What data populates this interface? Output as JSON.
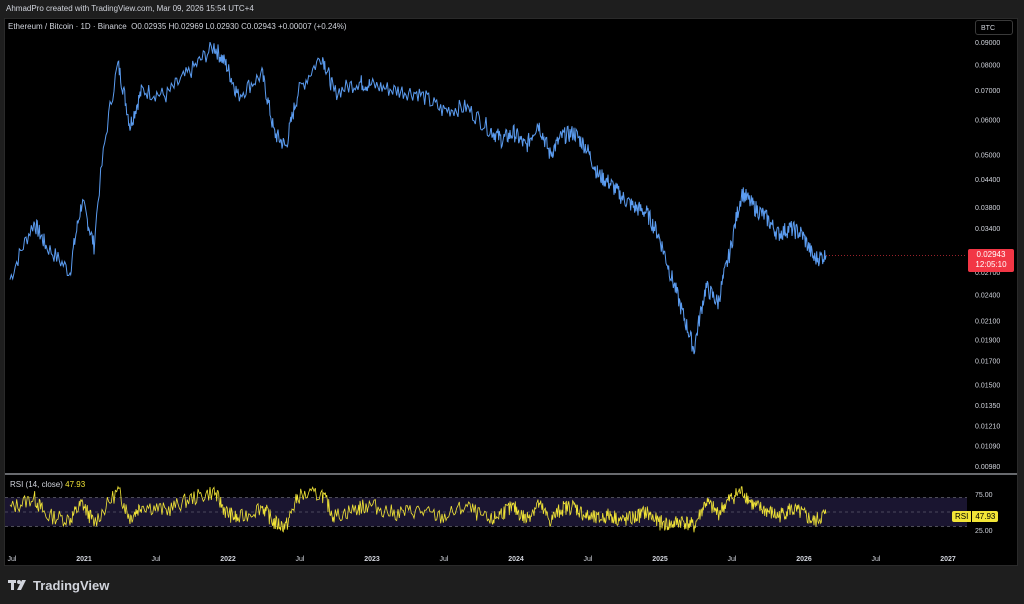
{
  "header": {
    "credit": "AhmadPro created with TradingView.com, Mar 09, 2026 15:54 UTC+4"
  },
  "legend": {
    "symbol": "Ethereum / Bitcoin · 1D · Binance",
    "o_label": "O",
    "o": "0.02935",
    "h_label": "H",
    "h": "0.02969",
    "l_label": "L",
    "l": "0.02930",
    "c_label": "C",
    "c": "0.02943",
    "change": "+0.00007 (+0.24%)"
  },
  "currency_button": "BTC",
  "last_price": {
    "value": "0.02943",
    "countdown": "12:05:10"
  },
  "rsi": {
    "label": "RSI (14, close)",
    "value": "47.93",
    "tag_label": "RSI",
    "tag_value": "47.93",
    "upper_label": "75.00",
    "lower_label": "25.00"
  },
  "footer": {
    "brand": "TradingView"
  },
  "colors": {
    "price_line": "#5b9cf0",
    "rsi_line": "#f2e537",
    "last_price_tag": "#f23645",
    "rsi_band_fill": "#1a1530"
  },
  "chart_data": [
    {
      "type": "line",
      "series": [
        {
          "name": "ETHBTC",
          "x": [
            "2020-07",
            "2020-09",
            "2020-10",
            "2020-12",
            "2021-01",
            "2021-02",
            "2021-04",
            "2021-05",
            "2021-06",
            "2021-08",
            "2021-10",
            "2021-12",
            "2022-01",
            "2022-02",
            "2022-04",
            "2022-05",
            "2022-06",
            "2022-07",
            "2022-09",
            "2022-10",
            "2022-12",
            "2023-01",
            "2023-03",
            "2023-05",
            "2023-07",
            "2023-09",
            "2023-11",
            "2023-12",
            "2024-01",
            "2024-02",
            "2024-03",
            "2024-04",
            "2024-05",
            "2024-06",
            "2024-07",
            "2024-08",
            "2024-09",
            "2024-10",
            "2024-11",
            "2024-12",
            "2025-01",
            "2025-02",
            "2025-03",
            "2025-04",
            "2025-05",
            "2025-06",
            "2025-07",
            "2025-08",
            "2025-09",
            "2025-10",
            "2025-11",
            "2025-12",
            "2026-01",
            "2026-02",
            "2026-03"
          ],
          "values": [
            0.026,
            0.035,
            0.031,
            0.027,
            0.039,
            0.031,
            0.08,
            0.058,
            0.07,
            0.068,
            0.077,
            0.088,
            0.08,
            0.068,
            0.076,
            0.056,
            0.052,
            0.069,
            0.084,
            0.069,
            0.073,
            0.072,
            0.07,
            0.069,
            0.063,
            0.064,
            0.057,
            0.054,
            0.056,
            0.052,
            0.059,
            0.05,
            0.055,
            0.056,
            0.052,
            0.045,
            0.043,
            0.04,
            0.038,
            0.037,
            0.033,
            0.027,
            0.022,
            0.018,
            0.025,
            0.023,
            0.03,
            0.041,
            0.038,
            0.036,
            0.033,
            0.034,
            0.033,
            0.029,
            0.02943
          ]
        }
      ],
      "y_ticks": [
        "0.09000",
        "0.08000",
        "0.07000",
        "0.06000",
        "0.05000",
        "0.04400",
        "0.03800",
        "0.03400",
        "0.02700",
        "0.02400",
        "0.02100",
        "0.01900",
        "0.01700",
        "0.01500",
        "0.01350",
        "0.01210",
        "0.01090",
        "0.00980"
      ],
      "y_scale": "log",
      "grid": false
    },
    {
      "type": "line",
      "series": [
        {
          "name": "RSI",
          "x": [
            "2020-07",
            "2020-09",
            "2020-10",
            "2020-12",
            "2021-01",
            "2021-02",
            "2021-04",
            "2021-05",
            "2021-06",
            "2021-08",
            "2021-10",
            "2021-12",
            "2022-01",
            "2022-02",
            "2022-04",
            "2022-05",
            "2022-06",
            "2022-07",
            "2022-09",
            "2022-10",
            "2022-12",
            "2023-01",
            "2023-03",
            "2023-05",
            "2023-07",
            "2023-09",
            "2023-11",
            "2023-12",
            "2024-01",
            "2024-02",
            "2024-03",
            "2024-04",
            "2024-05",
            "2024-06",
            "2024-07",
            "2024-08",
            "2024-09",
            "2024-10",
            "2024-11",
            "2024-12",
            "2025-01",
            "2025-02",
            "2025-03",
            "2025-04",
            "2025-05",
            "2025-06",
            "2025-07",
            "2025-08",
            "2025-09",
            "2025-10",
            "2025-11",
            "2025-12",
            "2026-01",
            "2026-02",
            "2026-03"
          ],
          "values": [
            55,
            70,
            45,
            40,
            62,
            35,
            80,
            42,
            60,
            52,
            68,
            78,
            50,
            40,
            58,
            35,
            30,
            72,
            75,
            44,
            55,
            60,
            48,
            52,
            42,
            58,
            36,
            50,
            56,
            40,
            62,
            38,
            55,
            58,
            44,
            40,
            46,
            38,
            42,
            50,
            36,
            32,
            38,
            30,
            64,
            48,
            68,
            80,
            58,
            52,
            44,
            54,
            48,
            36,
            47.93
          ]
        }
      ],
      "y_ticks": [
        "75.00",
        "25.00"
      ],
      "ylim": [
        0,
        100
      ]
    }
  ],
  "x_axis_labels": [
    "Jul",
    "2021",
    "Jul",
    "2022",
    "Jul",
    "2023",
    "Jul",
    "2024",
    "Jul",
    "2025",
    "Jul",
    "2026",
    "Jul",
    "2027"
  ]
}
